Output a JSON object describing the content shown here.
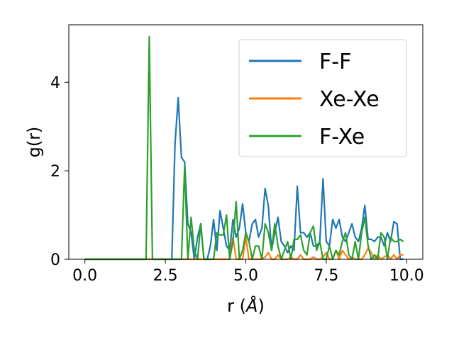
{
  "chart_data": {
    "type": "line",
    "xlabel": "r (",
    "xlabel_unit": "Å",
    "xlabel_close": ")",
    "ylabel": "g(r)",
    "xlim": [
      -0.5,
      10.5
    ],
    "ylim": [
      0,
      5.3
    ],
    "xticks": [
      0.0,
      2.5,
      5.0,
      7.5,
      10.0
    ],
    "xtick_labels": [
      "0.0",
      "2.5",
      "5.0",
      "7.5",
      "10.0"
    ],
    "yticks": [
      0,
      2,
      4
    ],
    "ytick_labels": [
      "0",
      "2",
      "4"
    ],
    "grid": false,
    "legend_position": "top-right",
    "series": [
      {
        "name": "F-F",
        "color": "#1f77b4",
        "x": [
          0.0,
          2.7,
          2.8,
          2.9,
          3.0,
          3.1,
          3.2,
          3.3,
          3.4,
          3.5,
          3.6,
          3.7,
          3.8,
          3.9,
          4.0,
          4.1,
          4.2,
          4.3,
          4.4,
          4.5,
          4.6,
          4.7,
          4.8,
          4.9,
          5.0,
          5.1,
          5.2,
          5.3,
          5.4,
          5.5,
          5.6,
          5.7,
          5.8,
          5.9,
          6.0,
          6.1,
          6.2,
          6.3,
          6.4,
          6.5,
          6.6,
          6.7,
          6.8,
          6.9,
          7.0,
          7.1,
          7.2,
          7.3,
          7.4,
          7.5,
          7.6,
          7.7,
          7.8,
          7.9,
          8.0,
          8.1,
          8.2,
          8.3,
          8.4,
          8.5,
          8.6,
          8.7,
          8.8,
          8.9,
          9.0,
          9.1,
          9.2,
          9.3,
          9.4,
          9.5,
          9.6,
          9.7,
          9.8,
          9.9
        ],
        "y": [
          0.0,
          0.0,
          2.6,
          3.65,
          2.3,
          2.2,
          0.8,
          0.6,
          0.0,
          0.5,
          0.8,
          0.0,
          0.0,
          0.3,
          0.9,
          0.2,
          1.1,
          0.7,
          0.3,
          0.2,
          0.9,
          0.5,
          0.7,
          1.25,
          0.6,
          0.4,
          0.8,
          0.9,
          0.5,
          0.7,
          1.6,
          1.2,
          0.2,
          0.6,
          0.95,
          0.4,
          0.3,
          0.15,
          0.3,
          0.2,
          1.65,
          0.6,
          0.6,
          0.5,
          0.6,
          0.3,
          0.3,
          0.4,
          1.82,
          0.4,
          0.3,
          0.9,
          0.7,
          0.9,
          0.5,
          0.4,
          0.6,
          0.8,
          0.5,
          0.4,
          0.7,
          1.22,
          0.45,
          0.45,
          0.4,
          0.5,
          0.5,
          0.3,
          0.6,
          0.4,
          0.85,
          0.8,
          0.0,
          0.0
        ]
      },
      {
        "name": "Xe-Xe",
        "color": "#ff7f0e",
        "x": [
          0.0,
          4.5,
          4.6,
          4.7,
          4.8,
          4.9,
          5.0,
          5.1,
          5.2,
          5.3,
          5.4,
          5.5,
          5.6,
          5.7,
          5.8,
          5.9,
          6.0,
          6.1,
          6.2,
          6.3,
          6.4,
          6.5,
          6.6,
          6.7,
          6.8,
          6.9,
          7.0,
          7.1,
          7.2,
          7.3,
          7.4,
          7.5,
          7.6,
          7.7,
          7.8,
          7.9,
          8.0,
          8.1,
          8.2,
          8.3,
          8.4,
          8.5,
          8.6,
          8.7,
          8.8,
          8.9,
          9.0,
          9.1,
          9.2,
          9.3,
          9.4,
          9.5,
          9.6,
          9.7,
          9.8,
          9.9
        ],
        "y": [
          0.0,
          0.0,
          0.5,
          0.0,
          0.0,
          0.0,
          0.5,
          0.0,
          0.0,
          0.0,
          0.0,
          0.0,
          0.05,
          0.15,
          0.0,
          0.0,
          0.1,
          0.0,
          0.0,
          0.0,
          0.05,
          0.0,
          0.0,
          0.1,
          0.0,
          0.0,
          0.0,
          0.05,
          0.0,
          0.0,
          0.05,
          0.15,
          0.0,
          0.0,
          0.2,
          0.0,
          0.2,
          0.1,
          0.0,
          0.05,
          0.0,
          0.0,
          0.0,
          0.1,
          0.25,
          0.15,
          0.0,
          0.1,
          0.0,
          0.05,
          0.1,
          0.0,
          0.1,
          0.0,
          0.1,
          0.1
        ]
      },
      {
        "name": "F-Xe",
        "color": "#2ca02c",
        "x": [
          0.0,
          1.9,
          2.0,
          2.1,
          2.2,
          3.0,
          3.1,
          3.2,
          3.3,
          3.4,
          3.5,
          3.6,
          3.7,
          3.8,
          4.0,
          4.1,
          4.2,
          4.3,
          4.4,
          4.5,
          4.6,
          4.7,
          4.8,
          4.9,
          5.0,
          5.1,
          5.2,
          5.3,
          5.4,
          5.5,
          5.6,
          5.7,
          5.8,
          5.9,
          6.0,
          6.1,
          6.2,
          6.3,
          6.4,
          6.5,
          6.6,
          6.7,
          6.8,
          6.9,
          7.0,
          7.1,
          7.2,
          7.3,
          7.4,
          7.5,
          7.6,
          7.7,
          7.8,
          7.9,
          8.0,
          8.1,
          8.2,
          8.3,
          8.4,
          8.5,
          8.6,
          8.7,
          8.8,
          8.9,
          9.0,
          9.1,
          9.2,
          9.3,
          9.4,
          9.5,
          9.6,
          9.7,
          9.8,
          9.9
        ],
        "y": [
          0.0,
          0.0,
          5.03,
          0.0,
          0.0,
          0.0,
          2.1,
          0.0,
          0.95,
          0.2,
          0.0,
          0.8,
          0.0,
          0.0,
          0.0,
          0.6,
          0.55,
          0.55,
          1.0,
          0.0,
          0.4,
          1.3,
          0.0,
          0.2,
          0.6,
          0.4,
          0.0,
          0.3,
          0.3,
          0.0,
          0.8,
          0.6,
          0.2,
          0.8,
          0.3,
          0.0,
          0.2,
          0.4,
          0.0,
          0.45,
          0.45,
          0.55,
          0.2,
          0.1,
          0.6,
          0.75,
          0.2,
          0.4,
          0.0,
          0.0,
          0.3,
          0.0,
          0.2,
          0.1,
          0.4,
          0.6,
          0.1,
          0.0,
          0.4,
          0.0,
          0.6,
          0.95,
          0.3,
          0.0,
          0.1,
          0.0,
          0.6,
          0.5,
          0.0,
          0.5,
          0.4,
          0.4,
          0.45,
          0.4
        ]
      }
    ]
  }
}
